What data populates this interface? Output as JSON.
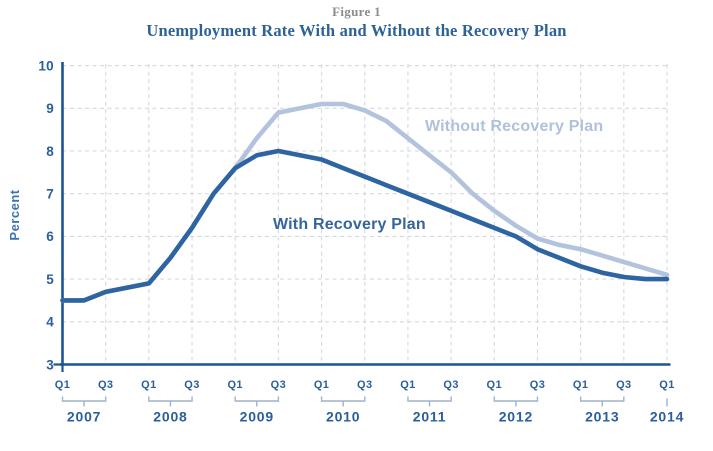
{
  "chart_data": {
    "type": "line",
    "figure_label": "Figure 1",
    "title": "Unemployment Rate With and Without the Recovery Plan",
    "ylabel": "Percent",
    "ylim": [
      3,
      10
    ],
    "yticks": [
      3,
      4,
      5,
      6,
      7,
      8,
      9,
      10
    ],
    "grid": "dashed-both-axes",
    "legend_position": "inline-labels-on-lines",
    "x_axis": {
      "unit": "quarter",
      "years": [
        {
          "year": "2007",
          "quarters": [
            "Q1",
            "Q3"
          ]
        },
        {
          "year": "2008",
          "quarters": [
            "Q1",
            "Q3"
          ]
        },
        {
          "year": "2009",
          "quarters": [
            "Q1",
            "Q3"
          ]
        },
        {
          "year": "2010",
          "quarters": [
            "Q1",
            "Q3"
          ]
        },
        {
          "year": "2011",
          "quarters": [
            "Q1",
            "Q3"
          ]
        },
        {
          "year": "2012",
          "quarters": [
            "Q1",
            "Q3"
          ]
        },
        {
          "year": "2013",
          "quarters": [
            "Q1",
            "Q3"
          ]
        },
        {
          "year": "2014",
          "quarters": [
            "Q1"
          ]
        }
      ]
    },
    "categories": [
      "2007 Q1",
      "2007 Q2",
      "2007 Q3",
      "2007 Q4",
      "2008 Q1",
      "2008 Q2",
      "2008 Q3",
      "2008 Q4",
      "2009 Q1",
      "2009 Q2",
      "2009 Q3",
      "2009 Q4",
      "2010 Q1",
      "2010 Q2",
      "2010 Q3",
      "2010 Q4",
      "2011 Q1",
      "2011 Q2",
      "2011 Q3",
      "2011 Q4",
      "2012 Q1",
      "2012 Q2",
      "2012 Q3",
      "2012 Q4",
      "2013 Q1",
      "2013 Q2",
      "2013 Q3",
      "2013 Q4",
      "2014 Q1"
    ],
    "series": [
      {
        "name": "Without Recovery Plan",
        "color": "#b3c3dd",
        "values": [
          4.5,
          4.5,
          4.7,
          4.8,
          4.9,
          5.5,
          6.2,
          7.0,
          7.6,
          8.3,
          8.9,
          9.0,
          9.1,
          9.1,
          8.95,
          8.7,
          8.3,
          7.9,
          7.5,
          7.0,
          6.6,
          6.25,
          5.95,
          5.8,
          5.7,
          5.55,
          5.4,
          5.25,
          5.1
        ]
      },
      {
        "name": "With Recovery Plan",
        "color": "#2d64a1",
        "values": [
          4.5,
          4.5,
          4.7,
          4.8,
          4.9,
          5.5,
          6.2,
          7.0,
          7.6,
          7.9,
          8.0,
          7.9,
          7.8,
          7.6,
          7.4,
          7.2,
          7.0,
          6.8,
          6.6,
          6.4,
          6.2,
          6.0,
          5.7,
          5.5,
          5.3,
          5.15,
          5.05,
          5.0,
          5.0
        ]
      }
    ]
  },
  "colors": {
    "axis": "#1c5496",
    "tick_text": "#2a5f9c",
    "bracket": "#9db3cc",
    "gridline": "#d3d9e1",
    "ylabel_text": "#3e74ad",
    "figure_label_text": "#8c8c8c",
    "title_text": "#2d6296",
    "with_label_text": "#35659b",
    "without_label_text": "#b0c1db"
  }
}
